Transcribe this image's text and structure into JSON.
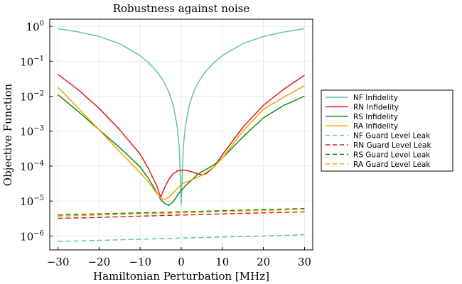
{
  "chart_data": {
    "type": "line",
    "title": "Robustness against noise",
    "xlabel": "Hamiltonian Perturbation [MHz]",
    "ylabel": "Objective Function",
    "xlim": [
      -32,
      32
    ],
    "ylim": [
      4e-07,
      1.6
    ],
    "yscale": "log",
    "grid": true,
    "legend_position": "right",
    "x_ticks": [
      -30,
      -20,
      -10,
      0,
      10,
      20,
      30
    ],
    "x_tick_labels": [
      "−30",
      "−20",
      "−10",
      "0",
      "10",
      "20",
      "30"
    ],
    "y_ticks": [
      1e-06,
      1e-05,
      0.0001,
      0.001,
      0.01,
      0.1,
      1
    ],
    "y_tick_bases": [
      "10",
      "10",
      "10",
      "10",
      "10",
      "10",
      "10"
    ],
    "y_tick_exponents": [
      "−6",
      "−5",
      "−4",
      "−3",
      "−2",
      "−1",
      "0"
    ],
    "x": [
      -30,
      -25,
      -20,
      -15,
      -10,
      -8,
      -6,
      -5,
      -4,
      -3,
      -2,
      -1,
      -0.5,
      0,
      0.5,
      1,
      2,
      3,
      4,
      5,
      6,
      8,
      10,
      15,
      20,
      25,
      30
    ],
    "series": [
      {
        "name": "NF Infidelity",
        "color": "#66c2a5",
        "dash": "solid",
        "values": [
          0.85,
          0.69,
          0.51,
          0.32,
          0.145,
          0.092,
          0.052,
          0.036,
          0.023,
          0.013,
          0.0058,
          0.0014,
          0.00035,
          8e-06,
          0.00035,
          0.0014,
          0.0058,
          0.013,
          0.023,
          0.036,
          0.052,
          0.092,
          0.145,
          0.32,
          0.51,
          0.69,
          0.85
        ]
      },
      {
        "name": "RN Infidelity",
        "color": "#e31a1c",
        "dash": "solid",
        "values": [
          0.042,
          0.015,
          0.0045,
          0.0011,
          0.00022,
          8.5e-05,
          2.8e-05,
          1.3e-05,
          2.5e-05,
          4.2e-05,
          6e-05,
          7.2e-05,
          7.5e-05,
          7.6e-05,
          7.7e-05,
          7.6e-05,
          7.2e-05,
          6.6e-05,
          6e-05,
          5.7e-05,
          6e-05,
          9.5e-05,
          0.00021,
          0.0013,
          0.0055,
          0.016,
          0.04
        ]
      },
      {
        "name": "RS Infidelity",
        "color": "#118811",
        "dash": "solid",
        "values": [
          0.011,
          0.0036,
          0.0011,
          0.00034,
          9.5e-05,
          4.5e-05,
          1.8e-05,
          1.1e-05,
          8.5e-06,
          7.5e-06,
          9.5e-06,
          1.4e-05,
          1.7e-05,
          2e-05,
          2.3e-05,
          2.7e-05,
          3.5e-05,
          4.5e-05,
          5.7e-05,
          6.9e-05,
          8e-05,
          0.00011,
          0.00017,
          0.00068,
          0.0024,
          0.0055,
          0.01
        ]
      },
      {
        "name": "RA Infidelity",
        "color": "#f5a300",
        "dash": "solid",
        "values": [
          0.018,
          0.0045,
          0.0011,
          0.00026,
          6.5e-05,
          3.5e-05,
          1.7e-05,
          1.2e-05,
          1.1e-05,
          1.3e-05,
          1.7e-05,
          2.3e-05,
          2.6e-05,
          2.9e-05,
          3.2e-05,
          3.4e-05,
          3.8e-05,
          4.3e-05,
          4.8e-05,
          5.5e-05,
          6.5e-05,
          9.5e-05,
          0.00017,
          0.001,
          0.0042,
          0.0095,
          0.02
        ]
      },
      {
        "name": "NF Guard Level Leak",
        "color": "#66c2a5",
        "dash": "dashed",
        "values": [
          7e-07,
          7.2e-07,
          7.5e-07,
          7.8e-07,
          8.1e-07,
          8.2e-07,
          8.4e-07,
          8.4e-07,
          8.5e-07,
          8.5e-07,
          8.6e-07,
          8.7e-07,
          8.7e-07,
          8.7e-07,
          8.8e-07,
          8.8e-07,
          8.8e-07,
          8.9e-07,
          8.9e-07,
          9e-07,
          9.1e-07,
          9.2e-07,
          9.4e-07,
          9.7e-07,
          1e-06,
          1.04e-06,
          1.08e-06
        ]
      },
      {
        "name": "RN Guard Level Leak",
        "color": "#e31a1c",
        "dash": "dashed",
        "values": [
          3.2e-06,
          3.3e-06,
          3.4e-06,
          3.55e-06,
          3.7e-06,
          3.75e-06,
          3.8e-06,
          3.85e-06,
          3.9e-06,
          3.9e-06,
          3.95e-06,
          3.95e-06,
          4e-06,
          4e-06,
          4e-06,
          4e-06,
          4.05e-06,
          4.05e-06,
          4.1e-06,
          4.1e-06,
          4.15e-06,
          4.2e-06,
          4.3e-06,
          4.45e-06,
          4.6e-06,
          4.75e-06,
          4.9e-06
        ]
      },
      {
        "name": "RS Guard Level Leak",
        "color": "#118811",
        "dash": "dashed",
        "values": [
          4e-06,
          4.15e-06,
          4.3e-06,
          4.45e-06,
          4.6e-06,
          4.65e-06,
          4.7e-06,
          4.75e-06,
          4.8e-06,
          4.8e-06,
          4.85e-06,
          4.9e-06,
          4.9e-06,
          4.95e-06,
          4.95e-06,
          4.95e-06,
          5e-06,
          5e-06,
          5.05e-06,
          5.1e-06,
          5.15e-06,
          5.2e-06,
          5.3e-06,
          5.5e-06,
          5.7e-06,
          5.9e-06,
          6.1e-06
        ]
      },
      {
        "name": "RA Guard Level Leak",
        "color": "#f5a300",
        "dash": "dashed",
        "values": [
          3.7e-06,
          3.85e-06,
          4e-06,
          4.15e-06,
          4.3e-06,
          4.35e-06,
          4.4e-06,
          4.45e-06,
          4.5e-06,
          4.5e-06,
          4.55e-06,
          4.6e-06,
          4.6e-06,
          4.6e-06,
          4.65e-06,
          4.65e-06,
          4.7e-06,
          4.75e-06,
          4.75e-06,
          4.8e-06,
          4.85e-06,
          4.9e-06,
          5e-06,
          5.2e-06,
          5.4e-06,
          5.6e-06,
          5.8e-06
        ]
      }
    ]
  }
}
